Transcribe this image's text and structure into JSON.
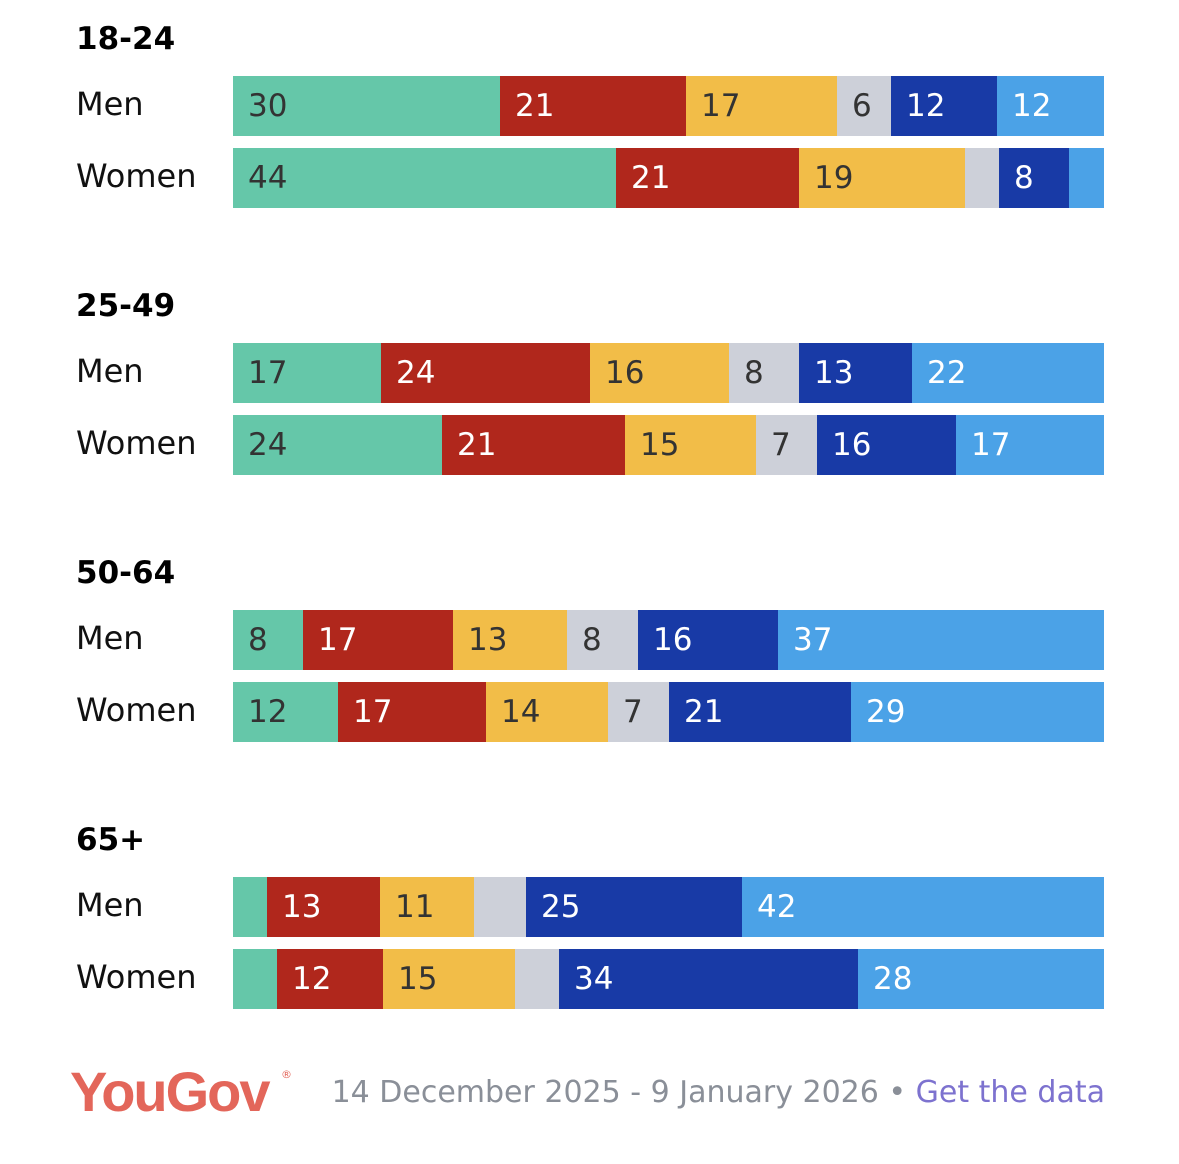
{
  "chart_data": {
    "type": "bar",
    "orientation": "horizontal",
    "stacked": true,
    "value_unit": "percent",
    "series_colors": [
      "#65c7a9",
      "#b0271c",
      "#f2bd48",
      "#cdd0d9",
      "#183aa6",
      "#4ba2e7"
    ],
    "label_colors": [
      "#333333",
      "#ffffff",
      "#333333",
      "#333333",
      "#ffffff",
      "#ffffff"
    ],
    "groups": [
      {
        "title": "18-24",
        "rows": [
          {
            "label": "Men",
            "values": [
              30,
              21,
              17,
              6,
              12,
              12
            ],
            "labels": [
              "30",
              "21",
              "17",
              "6",
              "12",
              "12"
            ]
          },
          {
            "label": "Women",
            "values": [
              44,
              21,
              19,
              4,
              8,
              4
            ],
            "labels": [
              "44",
              "21",
              "19",
              "",
              "8",
              ""
            ]
          }
        ]
      },
      {
        "title": "25-49",
        "rows": [
          {
            "label": "Men",
            "values": [
              17,
              24,
              16,
              8,
              13,
              22
            ],
            "labels": [
              "17",
              "24",
              "16",
              "8",
              "13",
              "22"
            ]
          },
          {
            "label": "Women",
            "values": [
              24,
              21,
              15,
              7,
              16,
              17
            ],
            "labels": [
              "24",
              "21",
              "15",
              "7",
              "16",
              "17"
            ]
          }
        ]
      },
      {
        "title": "50-64",
        "rows": [
          {
            "label": "Men",
            "values": [
              8,
              17,
              13,
              8,
              16,
              37
            ],
            "labels": [
              "8",
              "17",
              "13",
              "8",
              "16",
              "37"
            ]
          },
          {
            "label": "Women",
            "values": [
              12,
              17,
              14,
              7,
              21,
              29
            ],
            "labels": [
              "12",
              "17",
              "14",
              "7",
              "21",
              "29"
            ]
          }
        ]
      },
      {
        "title": "65+",
        "rows": [
          {
            "label": "Men",
            "values": [
              4,
              13,
              11,
              6,
              25,
              42
            ],
            "labels": [
              "",
              "13",
              "11",
              "",
              "25",
              "42"
            ]
          },
          {
            "label": "Women",
            "values": [
              5,
              12,
              15,
              5,
              34,
              28
            ],
            "labels": [
              "",
              "12",
              "15",
              "",
              "34",
              "28"
            ]
          }
        ]
      }
    ]
  },
  "footer": {
    "brand": "YouGov",
    "registered_mark": "®",
    "date_range": "14 December 2025 - 9 January 2026",
    "separator": " • ",
    "link_label": "Get the data"
  }
}
